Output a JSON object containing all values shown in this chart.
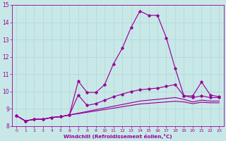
{
  "xlabel": "Windchill (Refroidissement éolien,°C)",
  "bg_color": "#c8e8e8",
  "line_color": "#990099",
  "grid_color": "#b0d4d4",
  "xlim": [
    -0.5,
    23.5
  ],
  "ylim": [
    8,
    15
  ],
  "xticks": [
    0,
    1,
    2,
    3,
    4,
    5,
    6,
    7,
    8,
    9,
    10,
    11,
    12,
    13,
    14,
    15,
    16,
    17,
    18,
    19,
    20,
    21,
    22,
    23
  ],
  "yticks": [
    8,
    9,
    10,
    11,
    12,
    13,
    14,
    15
  ],
  "series": [
    [
      8.6,
      8.3,
      8.4,
      8.4,
      8.5,
      8.55,
      8.65,
      10.6,
      9.95,
      9.95,
      10.4,
      11.6,
      12.5,
      13.7,
      14.65,
      14.4,
      14.4,
      13.1,
      11.35,
      9.75,
      9.75,
      10.55,
      9.8,
      9.7
    ],
    [
      8.6,
      8.3,
      8.4,
      8.4,
      8.5,
      8.55,
      8.65,
      9.8,
      9.2,
      9.3,
      9.5,
      9.7,
      9.85,
      10.0,
      10.1,
      10.15,
      10.2,
      10.3,
      10.4,
      9.75,
      9.65,
      9.75,
      9.65,
      9.65
    ],
    [
      8.6,
      8.3,
      8.4,
      8.4,
      8.5,
      8.55,
      8.65,
      8.75,
      8.85,
      8.95,
      9.05,
      9.15,
      9.25,
      9.35,
      9.45,
      9.5,
      9.55,
      9.6,
      9.65,
      9.55,
      9.4,
      9.5,
      9.45,
      9.45
    ],
    [
      8.6,
      8.3,
      8.4,
      8.4,
      8.5,
      8.55,
      8.65,
      8.72,
      8.8,
      8.88,
      8.96,
      9.04,
      9.12,
      9.2,
      9.28,
      9.32,
      9.36,
      9.4,
      9.44,
      9.4,
      9.3,
      9.38,
      9.35,
      9.35
    ]
  ],
  "markers": [
    true,
    true,
    false,
    false
  ]
}
